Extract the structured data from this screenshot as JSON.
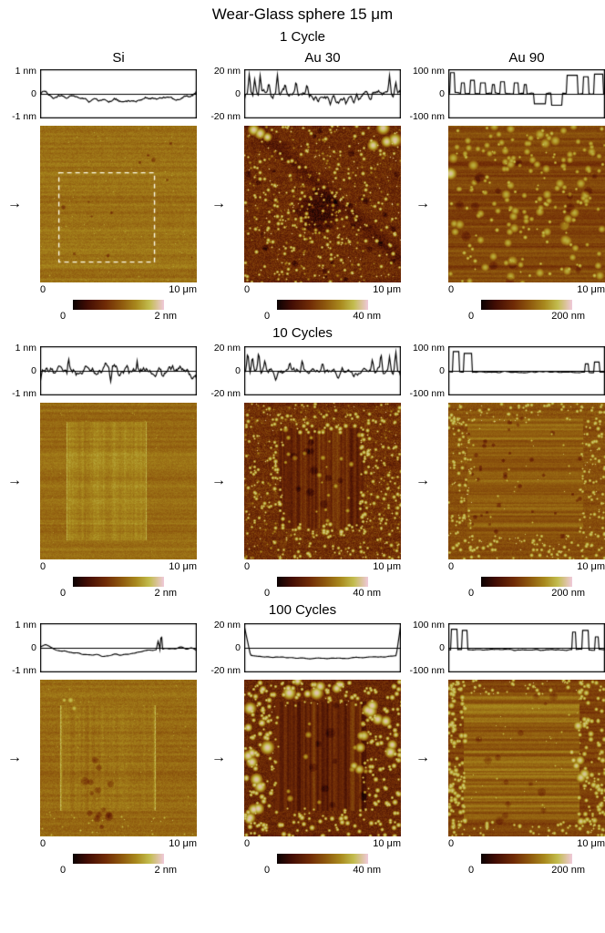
{
  "title": "Wear-Glass sphere 15 μm",
  "columns": [
    "Si",
    "Au 30",
    "Au 90"
  ],
  "colors": {
    "colormap": [
      [
        0,
        "#0b0203"
      ],
      [
        0.16,
        "#420d04"
      ],
      [
        0.36,
        "#702b06"
      ],
      [
        0.54,
        "#8f5a0e"
      ],
      [
        0.7,
        "#a98a1e"
      ],
      [
        0.84,
        "#c2bc4e"
      ],
      [
        1,
        "#efc9da"
      ]
    ],
    "trace": "#000000",
    "background": "#ffffff",
    "dashed_box": "#fdfbe8"
  },
  "sections": [
    {
      "label": "1 Cycle",
      "panels": [
        {
          "column": "Si",
          "profile": {
            "y_top": "1 nm",
            "y_zero": "0",
            "y_bottom": "-1 nm",
            "shape": "shallow-dip"
          },
          "image_style": "si-1cycle",
          "x_left": "0",
          "x_right": "10 μm",
          "scale_min": "0",
          "scale_max": "2 nm"
        },
        {
          "column": "Au 30",
          "profile": {
            "y_top": "20 nm",
            "y_zero": "0",
            "y_bottom": "-20 nm",
            "shape": "noisy-spikes"
          },
          "image_style": "au30-1cycle",
          "x_left": "0",
          "x_right": "10 μm",
          "scale_min": "0",
          "scale_max": "40 nm"
        },
        {
          "column": "Au 90",
          "profile": {
            "y_top": "100 nm",
            "y_zero": "0",
            "y_bottom": "-100 nm",
            "shape": "blocky-tall"
          },
          "image_style": "au90-1cycle",
          "x_left": "0",
          "x_right": "10 μm",
          "scale_min": "0",
          "scale_max": "200 nm"
        }
      ]
    },
    {
      "label": "10 Cycles",
      "panels": [
        {
          "column": "Si",
          "profile": {
            "y_top": "1 nm",
            "y_zero": "0",
            "y_bottom": "-1 nm",
            "shape": "noisy-small"
          },
          "image_style": "si-10cycles",
          "x_left": "0",
          "x_right": "10 μm",
          "scale_min": "0",
          "scale_max": "2 nm"
        },
        {
          "column": "Au 30",
          "profile": {
            "y_top": "20 nm",
            "y_zero": "0",
            "y_bottom": "-20 nm",
            "shape": "spiky-both"
          },
          "image_style": "au30-10cycles",
          "x_left": "0",
          "x_right": "10 μm",
          "scale_min": "0",
          "scale_max": "40 nm"
        },
        {
          "column": "Au 90",
          "profile": {
            "y_top": "100 nm",
            "y_zero": "0",
            "y_bottom": "-100 nm",
            "shape": "edge-peaks"
          },
          "image_style": "au90-10cycles",
          "x_left": "0",
          "x_right": "10 μm",
          "scale_min": "0",
          "scale_max": "200 nm"
        }
      ]
    },
    {
      "label": "100 Cycles",
      "panels": [
        {
          "column": "Si",
          "profile": {
            "y_top": "1 nm",
            "y_zero": "0",
            "y_bottom": "-1 nm",
            "shape": "dip-spike"
          },
          "image_style": "si-100cycles",
          "x_left": "0",
          "x_right": "10 μm",
          "scale_min": "0",
          "scale_max": "2 nm"
        },
        {
          "column": "Au 30",
          "profile": {
            "y_top": "20 nm",
            "y_zero": "0",
            "y_bottom": "-20 nm",
            "shape": "u-dip"
          },
          "image_style": "au30-100cycles",
          "x_left": "0",
          "x_right": "10 μm",
          "scale_min": "0",
          "scale_max": "40 nm"
        },
        {
          "column": "Au 90",
          "profile": {
            "y_top": "100 nm",
            "y_zero": "0",
            "y_bottom": "-100 nm",
            "shape": "blocky-edges"
          },
          "image_style": "au90-100cycles",
          "x_left": "0",
          "x_right": "10 μm",
          "scale_min": "0",
          "scale_max": "200 nm"
        }
      ]
    }
  ]
}
